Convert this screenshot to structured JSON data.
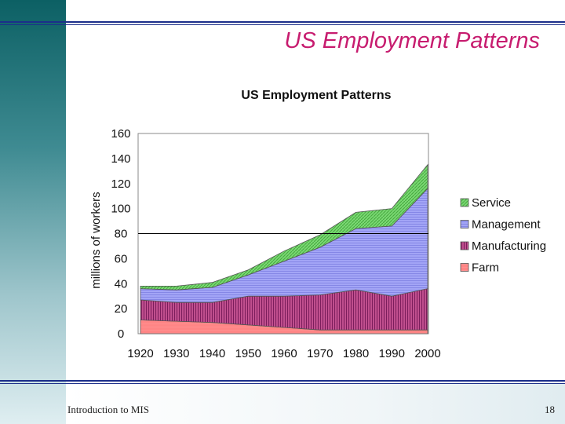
{
  "slide": {
    "title": "US Employment Patterns",
    "footer_left": "Introduction to MIS",
    "page_number": "18"
  },
  "colors": {
    "title": "#c71c6f",
    "rule": "#1c2f8a",
    "farm": "#ff8585",
    "manufacturing": "#a8307a",
    "management": "#9a9cf4",
    "service": "#6fd46a"
  },
  "chart_data": {
    "type": "area",
    "stacked": true,
    "title": "US Employment Patterns",
    "xlabel": "",
    "ylabel": "millions of workers",
    "categories": [
      "1920",
      "1930",
      "1940",
      "1950",
      "1960",
      "1970",
      "1980",
      "1990",
      "2000"
    ],
    "ylim": [
      0,
      160
    ],
    "yticks": [
      0,
      20,
      40,
      60,
      80,
      100,
      120,
      140,
      160
    ],
    "reference_line": 80,
    "legend_position": "right",
    "series": [
      {
        "name": "Farm",
        "color_key": "farm",
        "values": [
          11,
          10,
          9,
          7,
          5,
          3,
          3,
          3,
          3
        ]
      },
      {
        "name": "Manufacturing",
        "color_key": "manufacturing",
        "values": [
          16,
          15,
          16,
          23,
          25,
          28,
          32,
          27,
          33
        ]
      },
      {
        "name": "Management",
        "color_key": "management",
        "values": [
          9,
          10,
          12,
          17,
          28,
          38,
          49,
          56,
          80
        ]
      },
      {
        "name": "Service",
        "color_key": "service",
        "values": [
          2,
          3,
          4,
          4,
          8,
          10,
          13,
          14,
          19
        ]
      }
    ],
    "legend_order": [
      "Service",
      "Management",
      "Manufacturing",
      "Farm"
    ]
  }
}
